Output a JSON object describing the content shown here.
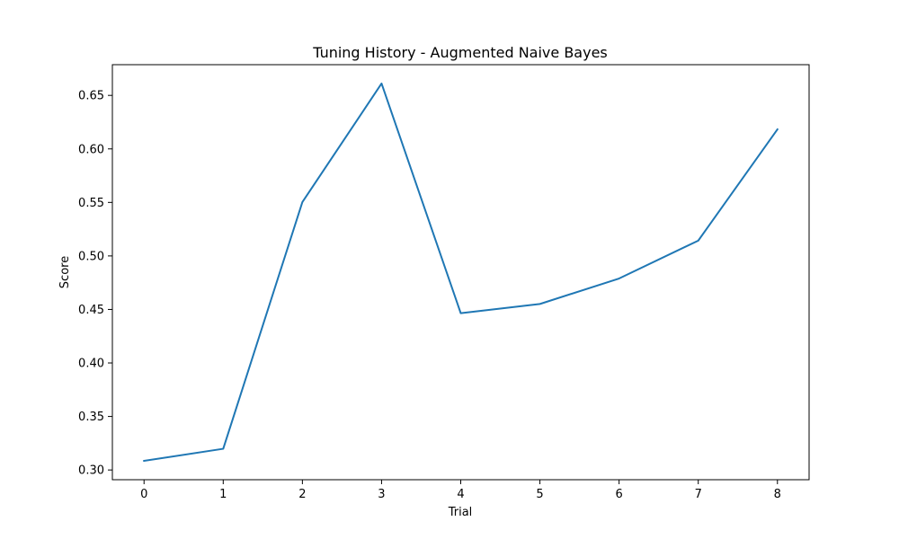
{
  "chart_data": {
    "type": "line",
    "title": "Tuning History - Augmented Naive Bayes",
    "xlabel": "Trial",
    "ylabel": "Score",
    "x": [
      0,
      1,
      2,
      3,
      4,
      5,
      6,
      7,
      8
    ],
    "series": [
      {
        "values": [
          0.3085,
          0.3198,
          0.5503,
          0.6611,
          0.4465,
          0.4551,
          0.4789,
          0.5143,
          0.6183
        ],
        "color": "#1f77b4"
      }
    ],
    "xlim": [
      -0.4,
      8.4
    ],
    "ylim": [
      0.2909,
      0.6787
    ],
    "xticks": [
      0,
      1,
      2,
      3,
      4,
      5,
      6,
      7,
      8
    ],
    "yticks": [
      0.3,
      0.35,
      0.4,
      0.45,
      0.5,
      0.55,
      0.6,
      0.65
    ],
    "ytick_labels": [
      "0.30",
      "0.35",
      "0.40",
      "0.45",
      "0.50",
      "0.55",
      "0.60",
      "0.65"
    ],
    "grid": false,
    "legend": "none"
  }
}
